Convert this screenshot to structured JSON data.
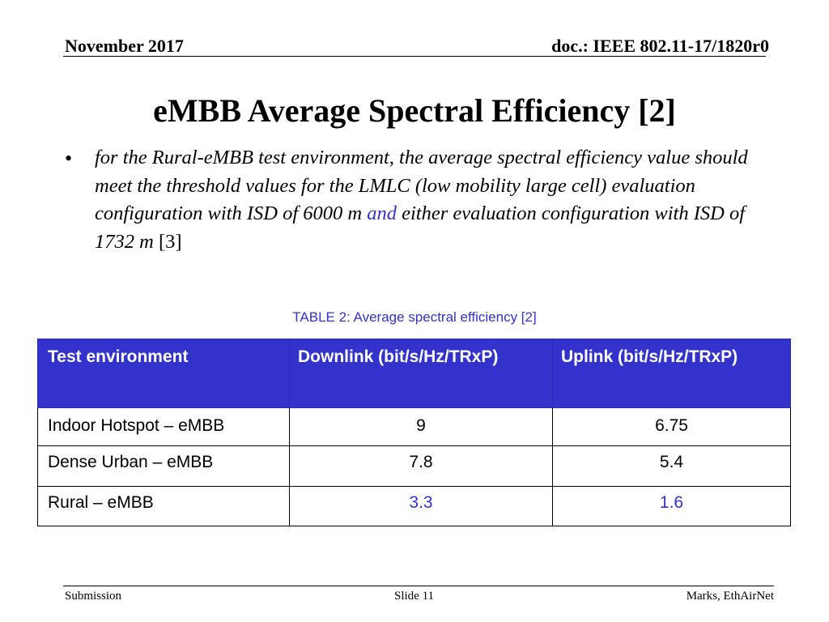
{
  "header": {
    "date": "November 2017",
    "doc": "doc.: IEEE 802.11-17/1820r0"
  },
  "slide": {
    "title": "eMBB Average Spectral Efficiency [2]",
    "bullet": {
      "glyph": "•",
      "text_part1": "for the Rural-eMBB test environment, the average spectral efficiency value should meet the threshold values for the LMLC (low mobility large cell) evaluation configuration with ISD of 6000 m ",
      "highlight": "and",
      "text_part2": " either evaluation configuration with ISD of 1732 m",
      "reference": " [3]"
    },
    "caption": "TABLE 2: Average spectral efficiency [2]",
    "table": {
      "headers": [
        "Test environment",
        "Downlink (bit/s/Hz/TRxP)",
        "Uplink (bit/s/Hz/TRxP)"
      ],
      "rows": [
        [
          "Indoor Hotspot – eMBB",
          "9",
          "6.75"
        ],
        [
          "Dense Urban – eMBB",
          "7.8",
          "5.4"
        ],
        [
          "Rural – eMBB",
          "3.3",
          "1.6"
        ]
      ]
    },
    "colors": {
      "accent": "#3333cc",
      "header_text": "#ffffff"
    }
  },
  "footer": {
    "left": "Submission",
    "center": "Slide 11",
    "right": "Marks, EthAirNet"
  }
}
